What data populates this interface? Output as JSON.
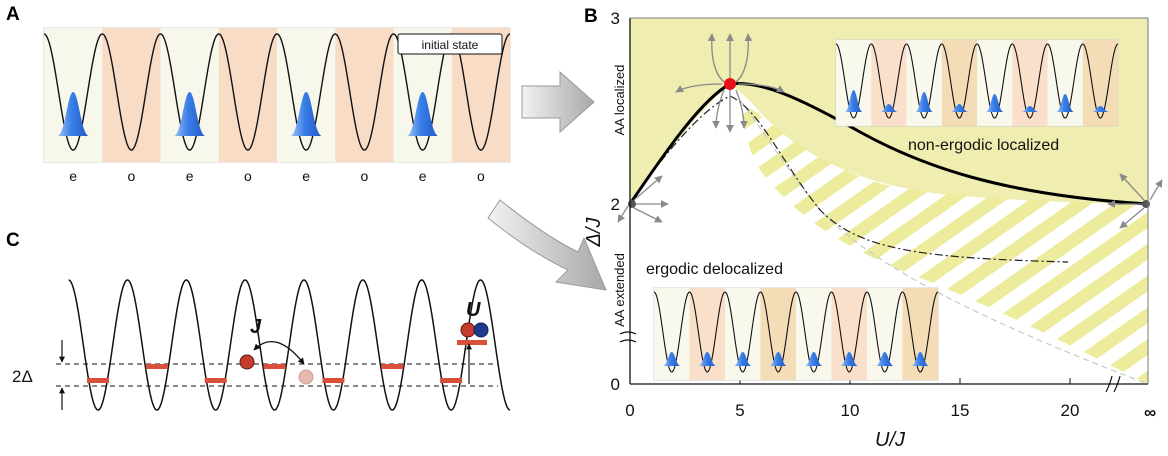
{
  "panels": {
    "A": {
      "label": "A",
      "initial_state": "initial state",
      "site_labels": [
        "e",
        "o",
        "e",
        "o",
        "e",
        "o",
        "e",
        "o"
      ]
    },
    "B": {
      "label": "B",
      "x_axis_title": "U/J",
      "y_axis_title": "Δ/J",
      "x_ticks": [
        "0",
        "5",
        "10",
        "15",
        "20",
        "∞"
      ],
      "y_ticks": [
        "0",
        "2",
        "3"
      ],
      "aa_localized": "AA localized",
      "aa_extended": "AA extended",
      "region_nonergodic": "non-ergodic localized",
      "region_ergodic": "ergodic delocalized"
    },
    "C": {
      "label": "C",
      "J_label": "J",
      "U_label": "U",
      "two_delta": "2Δ"
    }
  },
  "colors": {
    "yellow_region": "#efeeb0",
    "stripe": "#ecec9c",
    "salmon": "#f9dcc6",
    "cream": "#f8f7ec",
    "atom_blue": "#3a7ee8",
    "red_point": "#e8111b",
    "level_red": "#d9503a"
  }
}
